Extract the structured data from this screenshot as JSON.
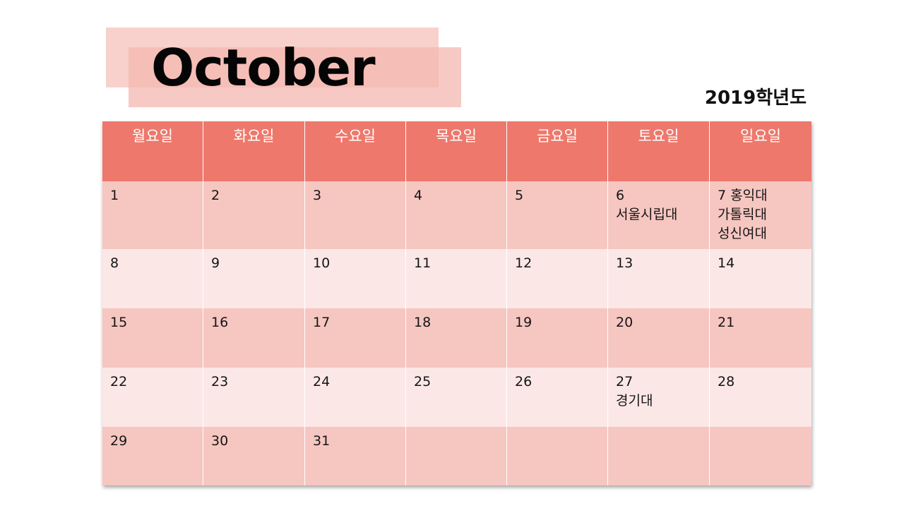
{
  "title": "October",
  "year_label": "2019학년도",
  "calendar": {
    "headers": [
      "월요일",
      "화요일",
      "수요일",
      "목요일",
      "금요일",
      "토요일",
      "일요일"
    ],
    "rows": [
      [
        "1",
        "2",
        "3",
        "4",
        "5",
        "6\n서울시립대",
        "7 홍익대\n가톨릭대\n성신여대"
      ],
      [
        "8",
        "9",
        "10",
        "11",
        "12",
        "13",
        "14"
      ],
      [
        "15",
        "16",
        "17",
        "18",
        "19",
        "20",
        "21"
      ],
      [
        "22",
        "23",
        "24",
        "25",
        "26",
        "27\n경기대",
        "28"
      ],
      [
        "29",
        "30",
        "31",
        "",
        "",
        "",
        ""
      ]
    ]
  },
  "colors": {
    "header_bg": "#ee786c",
    "row_dark": "#f6c6c1",
    "row_light": "#fbe8e6",
    "title_block_light": "#f7cdc8",
    "title_block_dark": "#f4b7b0"
  }
}
